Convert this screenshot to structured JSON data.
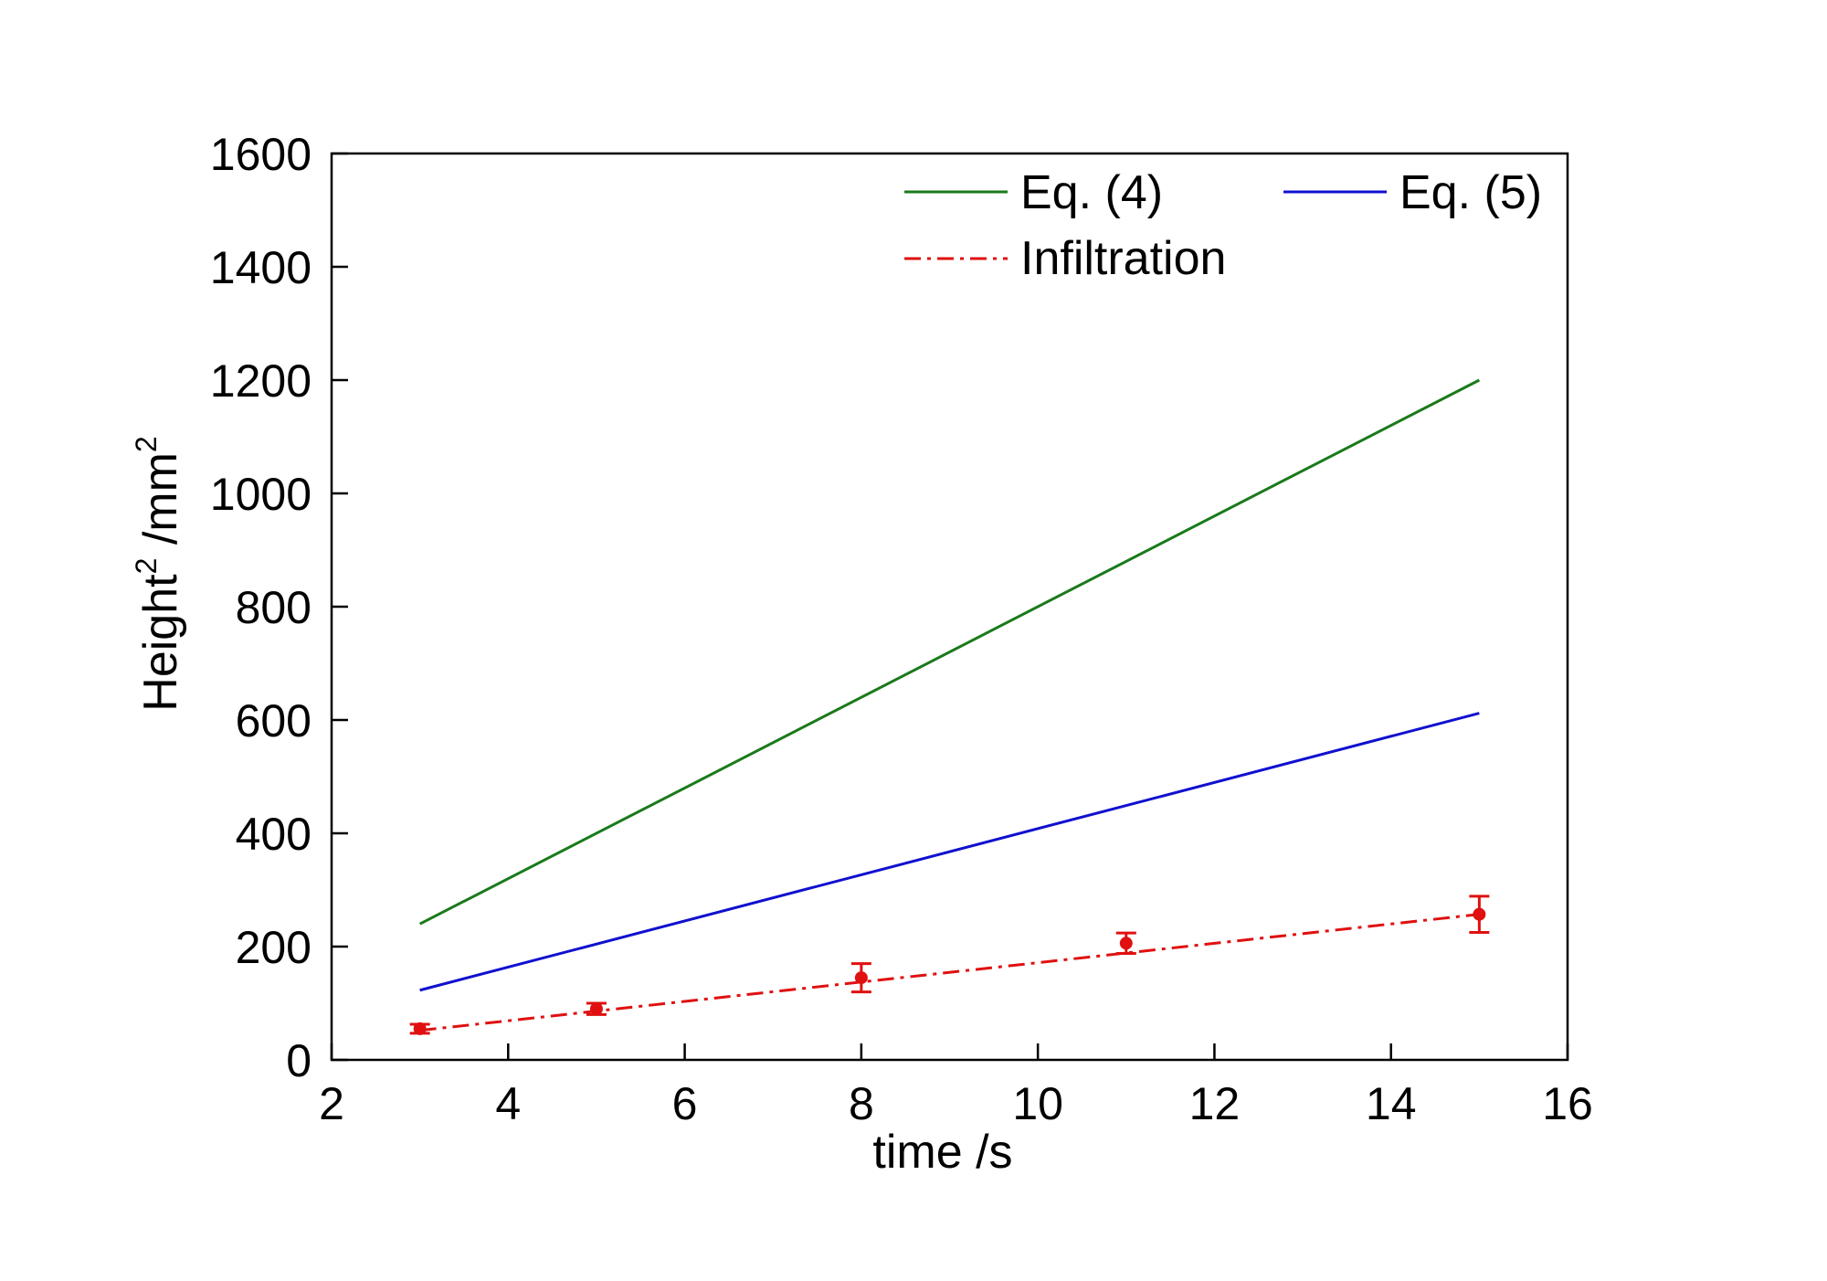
{
  "chart_data": {
    "type": "line",
    "xlabel": "time /s",
    "ylabel": {
      "base": "Height",
      "sup1": "2",
      "unit": " /mm",
      "sup2": "2"
    },
    "xlim": [
      2,
      16
    ],
    "ylim": [
      0,
      1600
    ],
    "xticks": [
      2,
      4,
      6,
      8,
      10,
      12,
      14,
      16
    ],
    "yticks": [
      0,
      200,
      400,
      600,
      800,
      1000,
      1200,
      1400,
      1600
    ],
    "grid": false,
    "legend": {
      "position": "top-right",
      "columns": 2
    },
    "series": [
      {
        "name": "Eq. (4)",
        "color": "#1a7a1a",
        "style": "solid",
        "x": [
          3,
          15
        ],
        "y": [
          240,
          1200
        ]
      },
      {
        "name": "Eq. (5)",
        "color": "#1010d0",
        "style": "solid",
        "x": [
          3,
          15
        ],
        "y": [
          123,
          612
        ]
      },
      {
        "name": "Infiltration",
        "color": "#e01010",
        "style": "dash-dot",
        "x": [
          3,
          15
        ],
        "y": [
          52,
          257
        ],
        "points": [
          {
            "x": 3,
            "y": 55,
            "err": 8
          },
          {
            "x": 5,
            "y": 90,
            "err": 10
          },
          {
            "x": 8,
            "y": 145,
            "err": 25
          },
          {
            "x": 11,
            "y": 206,
            "err": 18
          },
          {
            "x": 15,
            "y": 257,
            "err": 32
          }
        ]
      }
    ]
  }
}
